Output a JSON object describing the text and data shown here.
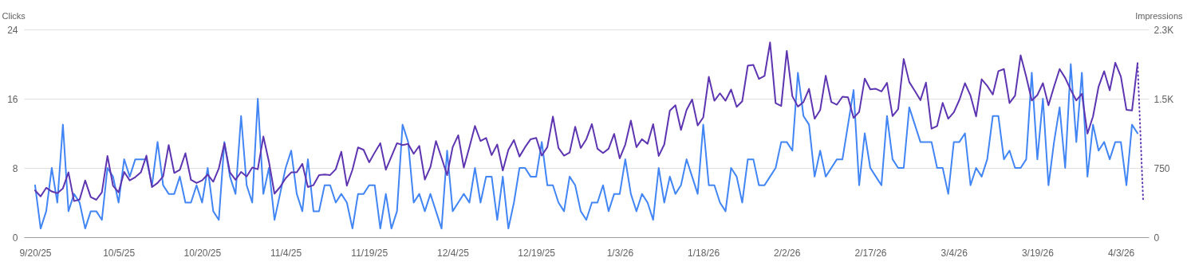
{
  "chart_data": {
    "type": "line",
    "ylabel": "Clicks",
    "y2label": "Impressions",
    "x": [
      "2025-09-20",
      "2025-09-21",
      "2025-09-22",
      "2025-09-23",
      "2025-09-24",
      "2025-09-25",
      "2025-09-26",
      "2025-09-27",
      "2025-09-28",
      "2025-09-29",
      "2025-09-30",
      "2025-10-01",
      "2025-10-02",
      "2025-10-03",
      "2025-10-04",
      "2025-10-05",
      "2025-10-06",
      "2025-10-07",
      "2025-10-08",
      "2025-10-09",
      "2025-10-10",
      "2025-10-11",
      "2025-10-12",
      "2025-10-13",
      "2025-10-14",
      "2025-10-15",
      "2025-10-16",
      "2025-10-17",
      "2025-10-18",
      "2025-10-19",
      "2025-10-20",
      "2025-10-21",
      "2025-10-22",
      "2025-10-23",
      "2025-10-24",
      "2025-10-25",
      "2025-10-26",
      "2025-10-27",
      "2025-10-28",
      "2025-10-29",
      "2025-10-30",
      "2025-10-31",
      "2025-11-01",
      "2025-11-02",
      "2025-11-03",
      "2025-11-04",
      "2025-11-05",
      "2025-11-06",
      "2025-11-07",
      "2025-11-08",
      "2025-11-09",
      "2025-11-10",
      "2025-11-11",
      "2025-11-12",
      "2025-11-13",
      "2025-11-14",
      "2025-11-15",
      "2025-11-16",
      "2025-11-17",
      "2025-11-18",
      "2025-11-19",
      "2025-11-20",
      "2025-11-21",
      "2025-11-22",
      "2025-11-23",
      "2025-11-24",
      "2025-11-25",
      "2025-11-26",
      "2025-11-27",
      "2025-11-28",
      "2025-11-29",
      "2025-11-30",
      "2025-12-01",
      "2025-12-02",
      "2025-12-03",
      "2025-12-04",
      "2025-12-05",
      "2025-12-06",
      "2025-12-07",
      "2025-12-08",
      "2025-12-09",
      "2025-12-10",
      "2025-12-11",
      "2025-12-12",
      "2025-12-13",
      "2025-12-14",
      "2025-12-15",
      "2025-12-16",
      "2025-12-17",
      "2025-12-18",
      "2025-12-19",
      "2025-12-20",
      "2025-12-21",
      "2025-12-22",
      "2025-12-23",
      "2025-12-24",
      "2025-12-25",
      "2025-12-26",
      "2025-12-27",
      "2025-12-28",
      "2025-12-29",
      "2025-12-30",
      "2025-12-31",
      "2026-01-01",
      "2026-01-02",
      "2026-01-03",
      "2026-01-04",
      "2026-01-05",
      "2026-01-06",
      "2026-01-07",
      "2026-01-08",
      "2026-01-09",
      "2026-01-10",
      "2026-01-11",
      "2026-01-12",
      "2026-01-13",
      "2026-01-14",
      "2026-01-15",
      "2026-01-16",
      "2026-01-17",
      "2026-01-18",
      "2026-01-19",
      "2026-01-20",
      "2026-01-21",
      "2026-01-22",
      "2026-01-23",
      "2026-01-24",
      "2026-01-25",
      "2026-01-26",
      "2026-01-27",
      "2026-01-28",
      "2026-01-29",
      "2026-01-30",
      "2026-01-31",
      "2026-02-01",
      "2026-02-02",
      "2026-02-03",
      "2026-02-04",
      "2026-02-05",
      "2026-02-06",
      "2026-02-07",
      "2026-02-08",
      "2026-02-09",
      "2026-02-10",
      "2026-02-11",
      "2026-02-12",
      "2026-02-13",
      "2026-02-14",
      "2026-02-15",
      "2026-02-16",
      "2026-02-17",
      "2026-02-18",
      "2026-02-19",
      "2026-02-20",
      "2026-02-21",
      "2026-02-22",
      "2026-02-23",
      "2026-02-24",
      "2026-02-25",
      "2026-02-26",
      "2026-02-27",
      "2026-02-28",
      "2026-03-01",
      "2026-03-02",
      "2026-03-03",
      "2026-03-04",
      "2026-03-05",
      "2026-03-06",
      "2026-03-07",
      "2026-03-08",
      "2026-03-09",
      "2026-03-10",
      "2026-03-11",
      "2026-03-12",
      "2026-03-13",
      "2026-03-14",
      "2026-03-15",
      "2026-03-16",
      "2026-03-17",
      "2026-03-18",
      "2026-03-19",
      "2026-03-20",
      "2026-03-21",
      "2026-03-22",
      "2026-03-23",
      "2026-03-24",
      "2026-03-25",
      "2026-03-26",
      "2026-03-27",
      "2026-03-28",
      "2026-03-29",
      "2026-03-30",
      "2026-03-31",
      "2026-04-01",
      "2026-04-02",
      "2026-04-03",
      "2026-04-04",
      "2026-04-05",
      "2026-04-06"
    ],
    "series": [
      {
        "color": "#4285f4",
        "values": [
          6,
          1,
          3,
          8,
          4,
          13,
          3,
          5,
          4,
          1,
          3,
          3,
          2,
          8,
          7,
          4,
          9,
          7,
          9,
          9,
          9,
          6,
          11,
          6,
          5,
          5,
          7,
          4,
          4,
          6,
          4,
          8,
          3,
          2,
          11,
          7,
          5,
          14,
          6,
          4,
          16,
          5,
          8,
          2,
          5,
          8,
          10,
          5,
          3,
          9,
          3,
          3,
          6,
          6,
          4,
          5,
          4,
          1,
          5,
          5,
          6,
          6,
          1,
          5,
          1,
          3,
          13,
          11,
          4,
          5,
          3,
          5,
          3,
          1,
          10,
          3,
          4,
          5,
          4,
          8,
          4,
          7,
          7,
          2,
          7,
          1,
          4,
          8,
          8,
          7,
          7,
          11,
          6,
          6,
          4,
          3,
          7,
          6,
          3,
          2,
          4,
          4,
          6,
          3,
          5,
          5,
          9,
          5,
          3,
          5,
          4,
          2,
          8,
          4,
          7,
          5,
          6,
          9,
          7,
          5,
          13,
          6,
          6,
          4,
          3,
          8,
          7,
          4,
          9,
          9,
          6,
          6,
          7,
          8,
          11,
          11,
          10,
          19,
          14,
          13,
          7,
          10,
          7,
          8,
          9,
          9,
          13,
          17,
          6,
          12,
          8,
          7,
          6,
          14,
          9,
          8,
          8,
          15,
          13,
          11,
          11,
          11,
          8,
          8,
          5,
          11,
          11,
          12,
          6,
          8,
          7,
          9,
          14,
          14,
          9,
          10,
          8,
          8,
          9,
          19,
          9,
          16,
          6,
          11,
          15,
          8,
          20,
          11,
          19,
          7,
          13,
          10,
          11,
          9,
          11,
          11,
          6,
          13,
          12
        ]
      },
      {
        "color": "#5e35b1",
        "axis": "y2",
        "values": [
          506,
          442,
          535,
          495,
          477,
          529,
          702,
          391,
          408,
          615,
          434,
          405,
          486,
          880,
          558,
          486,
          707,
          615,
          650,
          702,
          883,
          543,
          587,
          658,
          998,
          696,
          730,
          909,
          621,
          587,
          615,
          679,
          601,
          744,
          1018,
          702,
          621,
          707,
          658,
          754,
          736,
          1090,
          817,
          472,
          543,
          638,
          702,
          702,
          794,
          543,
          564,
          673,
          679,
          673,
          736,
          926,
          558,
          731,
          972,
          946,
          811,
          917,
          1018,
          731,
          874,
          1018,
          998,
          1010,
          903,
          989,
          624,
          759,
          1041,
          860,
          673,
          975,
          1104,
          754,
          975,
          1205,
          1041,
          1075,
          889,
          1004,
          722,
          946,
          1052,
          874,
          975,
          1061,
          1075,
          883,
          975,
          1306,
          966,
          883,
          917,
          1196,
          966,
          1061,
          1225,
          958,
          912,
          958,
          1119,
          854,
          1004,
          1263,
          975,
          1061,
          1012,
          1225,
          880,
          1004,
          1371,
          1429,
          1162,
          1377,
          1492,
          1210,
          1297,
          1737,
          1478,
          1558,
          1478,
          1599,
          1412,
          1472,
          1858,
          1866,
          1714,
          1746,
          2110,
          1451,
          1421,
          2018,
          1527,
          1415,
          1464,
          1607,
          1283,
          1377,
          1749,
          1464,
          1435,
          1522,
          1516,
          1292,
          1357,
          1717,
          1601,
          1607,
          1578,
          1671,
          1312,
          1386,
          1930,
          1680,
          1584,
          1484,
          1674,
          1175,
          1204,
          1455,
          1283,
          1352,
          1487,
          1668,
          1533,
          1308,
          1711,
          1639,
          1545,
          1798,
          1821,
          1453,
          1533,
          1970,
          1740,
          1481,
          1539,
          1668,
          1429,
          1631,
          1821,
          1725,
          1596,
          1481,
          1553,
          1122,
          1308,
          1631,
          1798,
          1591,
          1890,
          1740,
          1380,
          1372,
          1884
        ]
      },
      {
        "color": "#5e35b1",
        "axis": "y2",
        "line_style": "dotted",
        "x": [
          "2026-04-06",
          "2026-04-07"
        ],
        "values": [
          1884,
          403
        ]
      }
    ],
    "xlim": [
      "2025-09-18",
      "2026-04-08"
    ],
    "xticks": [
      {
        "value": "2025-09-20",
        "label": "9/20/25"
      },
      {
        "value": "2025-10-05",
        "label": "10/5/25"
      },
      {
        "value": "2025-10-20",
        "label": "10/20/25"
      },
      {
        "value": "2025-11-04",
        "label": "11/4/25"
      },
      {
        "value": "2025-11-19",
        "label": "11/19/25"
      },
      {
        "value": "2025-12-04",
        "label": "12/4/25"
      },
      {
        "value": "2025-12-19",
        "label": "12/19/25"
      },
      {
        "value": "2026-01-03",
        "label": "1/3/26"
      },
      {
        "value": "2026-01-18",
        "label": "1/18/26"
      },
      {
        "value": "2026-02-02",
        "label": "2/2/26"
      },
      {
        "value": "2026-02-17",
        "label": "2/17/26"
      },
      {
        "value": "2026-03-04",
        "label": "3/4/26"
      },
      {
        "value": "2026-03-19",
        "label": "3/19/26"
      },
      {
        "value": "2026-04-03",
        "label": "4/3/26"
      }
    ],
    "ylim": [
      0,
      24
    ],
    "yticks": [
      0,
      8,
      16,
      24
    ],
    "y2lim": [
      0,
      2250
    ],
    "y2ticks": [
      0,
      750,
      {
        "value": 1500,
        "label": "1.5K"
      },
      {
        "value": 2250,
        "label": "2.3K"
      }
    ],
    "grid": "y"
  }
}
